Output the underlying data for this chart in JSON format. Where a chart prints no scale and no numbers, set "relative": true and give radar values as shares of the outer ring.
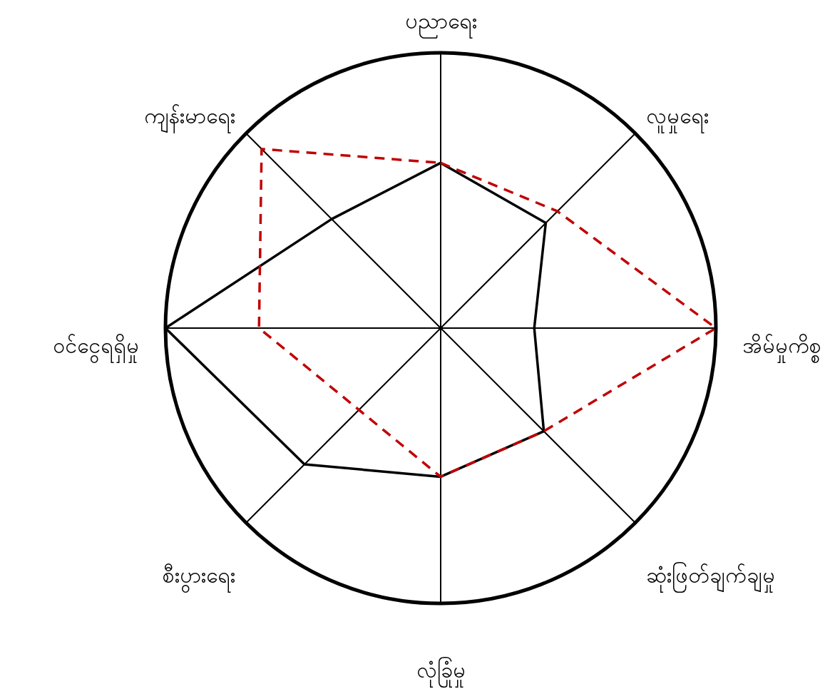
{
  "chart_data": {
    "type": "radar",
    "relative": true,
    "categories": [
      "ပညာရေး",
      "လူမှုရေး",
      "အိမ်မှုကိစ္စ",
      "ဆုံးဖြတ်ချက်ချမှု",
      "လုံခြုံမှု",
      "စီးပွားရေး",
      "ဝင်ငွေရရှိမှု",
      "ကျန်းမာရေး"
    ],
    "series": [
      {
        "color": "#000000",
        "line_style": "solid",
        "values": [
          0.6,
          0.54,
          0.34,
          0.53,
          0.54,
          0.7,
          1.0,
          0.56
        ]
      },
      {
        "color": "#c00000",
        "line_style": "dashed",
        "values": [
          0.6,
          0.6,
          1.0,
          0.53,
          0.54,
          0.42,
          0.66,
          0.92
        ]
      }
    ],
    "legend": false
  }
}
